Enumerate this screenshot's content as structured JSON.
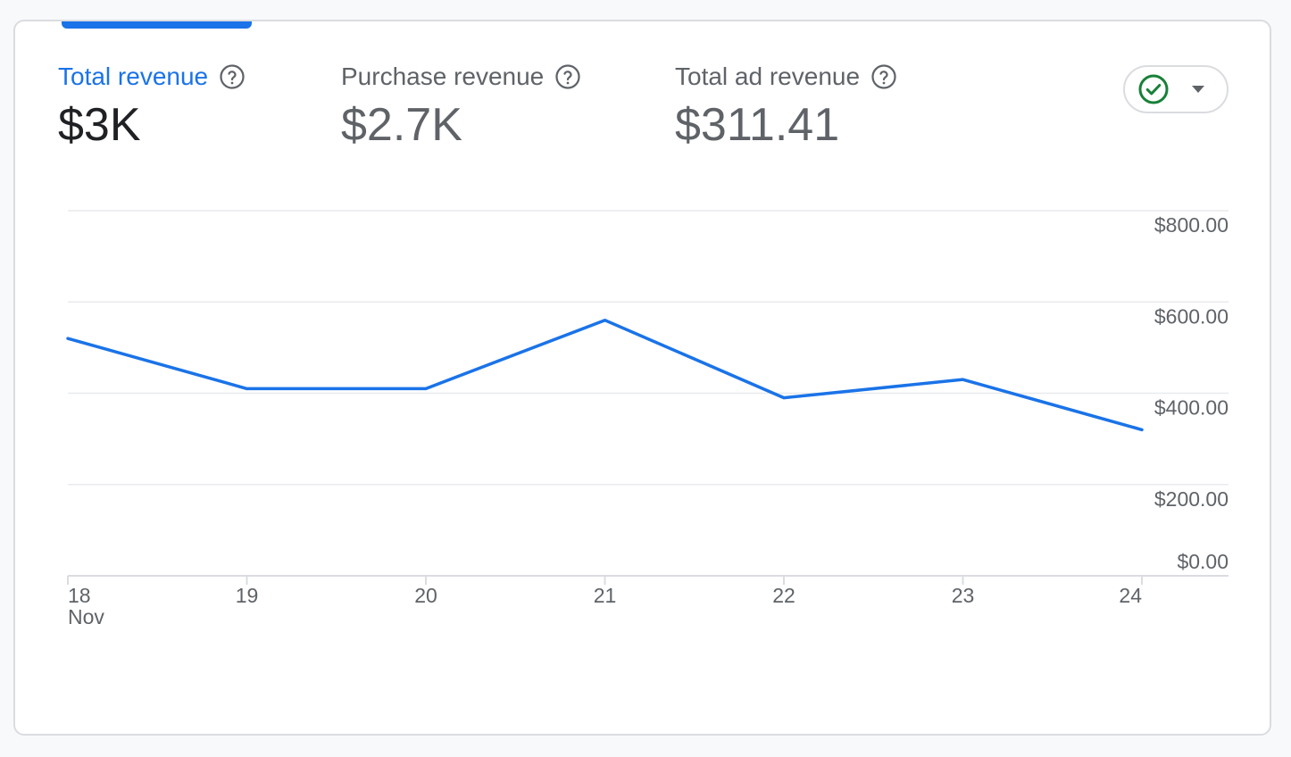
{
  "metrics": [
    {
      "label": "Total revenue",
      "value": "$3K",
      "active": true
    },
    {
      "label": "Purchase revenue",
      "value": "$2.7K",
      "active": false
    },
    {
      "label": "Total ad revenue",
      "value": "$311.41",
      "active": false
    }
  ],
  "icons": {
    "help": "help-circle-icon",
    "status": "check-circle-icon",
    "dropdown": "caret-down-icon"
  },
  "colors": {
    "accent": "#1a73e8",
    "status_ok": "#188038",
    "line": "#1a73e8"
  },
  "chart_data": {
    "type": "line",
    "x": [
      "18",
      "19",
      "20",
      "21",
      "22",
      "23",
      "24"
    ],
    "x_month_label": "Nov",
    "series": [
      {
        "values": [
          520,
          410,
          410,
          560,
          390,
          430,
          320
        ]
      }
    ],
    "y_ticks": [
      "$0.00",
      "$200.00",
      "$400.00",
      "$600.00",
      "$800.00"
    ],
    "y_tick_values": [
      0,
      200,
      400,
      600,
      800
    ],
    "ylim": [
      0,
      800
    ],
    "y_axis_position": "right",
    "grid": true
  }
}
